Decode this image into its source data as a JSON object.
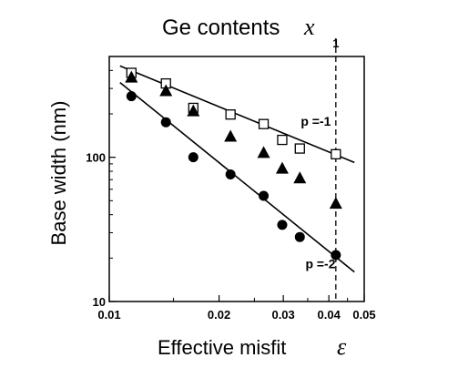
{
  "chart_data": {
    "type": "scatter",
    "title": "Ge contents",
    "title_symbol": "x",
    "top_axis_tick": "1",
    "top_axis_tick_value": 0.0418,
    "xlabel": "Effective misfit",
    "xlabel_symbol": "ε",
    "ylabel": "Base width (nm)",
    "xscale": "log",
    "yscale": "log",
    "xlim": [
      0.01,
      0.05
    ],
    "ylim": [
      10,
      500
    ],
    "x_ticks": [
      {
        "label": "0.01",
        "value": 0.01
      },
      {
        "label": "0.02",
        "value": 0.02
      },
      {
        "label": "0.03",
        "value": 0.03
      },
      {
        "label": "0.04",
        "value": 0.04
      },
      {
        "label": "0.05",
        "value": 0.05
      }
    ],
    "y_ticks": [
      {
        "label": "10",
        "value": 10
      },
      {
        "label": "100",
        "value": 100
      }
    ],
    "series": [
      {
        "marker": "open-square",
        "x": [
          0.0115,
          0.0143,
          0.017,
          0.0215,
          0.0265,
          0.0298,
          0.0333,
          0.0418
        ],
        "y": [
          385,
          325,
          220,
          198,
          170,
          132,
          115,
          105
        ]
      },
      {
        "marker": "filled-triangle",
        "x": [
          0.0115,
          0.0143,
          0.017,
          0.0215,
          0.0265,
          0.0298,
          0.0333,
          0.0418
        ],
        "y": [
          360,
          290,
          210,
          140,
          108,
          84,
          72,
          48
        ]
      },
      {
        "marker": "filled-circle",
        "x": [
          0.0115,
          0.0143,
          0.017,
          0.0215,
          0.0265,
          0.0298,
          0.0333,
          0.0418
        ],
        "y": [
          265,
          175,
          100,
          76,
          54,
          34,
          28,
          21
        ]
      }
    ],
    "fit_lines": [
      {
        "label": "p =-1",
        "x": [
          0.0107,
          0.047
        ],
        "y": [
          430,
          92
        ],
        "label_x": 0.0335,
        "label_y": 165
      },
      {
        "label": "p =-2",
        "x": [
          0.0107,
          0.047
        ],
        "y": [
          330,
          16
        ],
        "label_x": 0.0345,
        "label_y": 17
      }
    ],
    "reference_line": {
      "x": 0.0418,
      "style": "dashed"
    },
    "grid": false
  }
}
